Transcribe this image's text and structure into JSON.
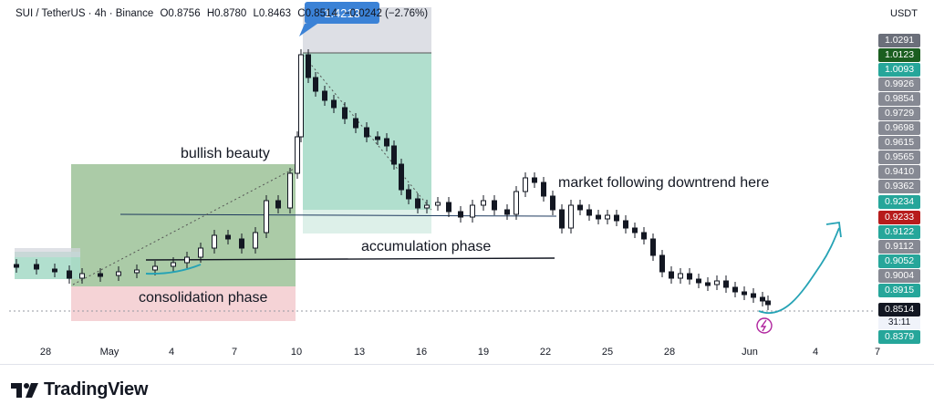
{
  "header": {
    "symbol": "SUI / TetherUS · 4h · Binance",
    "open": "O0.8756",
    "high": "H0.8780",
    "low": "L0.8463",
    "close": "C0.8514",
    "change": "−0.0242 (−2.76%)"
  },
  "currency": "USDT",
  "price_scale": {
    "labels": [
      {
        "text": "1.0291",
        "color": "#6b6f7a"
      },
      {
        "text": "1.0123",
        "color": "#1b5e20"
      },
      {
        "text": "1.0093",
        "color": "#26a69a"
      },
      {
        "text": "0.9926",
        "color": "#868993"
      },
      {
        "text": "0.9854",
        "color": "#868993"
      },
      {
        "text": "0.9729",
        "color": "#868993"
      },
      {
        "text": "0.9698",
        "color": "#868993"
      },
      {
        "text": "0.9615",
        "color": "#868993"
      },
      {
        "text": "0.9565",
        "color": "#868993"
      },
      {
        "text": "0.9410",
        "color": "#868993"
      },
      {
        "text": "0.9362",
        "color": "#868993"
      },
      {
        "text": "0.9234",
        "color": "#26a69a"
      },
      {
        "text": "0.9233",
        "color": "#b71c1c"
      },
      {
        "text": "0.9122",
        "color": "#26a69a"
      },
      {
        "text": "0.9112",
        "color": "#868993"
      },
      {
        "text": "0.9052",
        "color": "#26a69a"
      },
      {
        "text": "0.9004",
        "color": "#868993"
      },
      {
        "text": "0.8915",
        "color": "#26a69a"
      },
      {
        "text": "0.8514",
        "color": "#131722"
      },
      {
        "text": "0.8379",
        "color": "#26a69a"
      }
    ],
    "countdown": "31:11"
  },
  "x_axis": [
    "28",
    "May",
    "4",
    "7",
    "10",
    "13",
    "16",
    "19",
    "22",
    "25",
    "28",
    "Jun",
    "4",
    "7"
  ],
  "annotations": {
    "bullish": "bullish beauty",
    "consolidation": "consolidation phase",
    "accumulation": "accumulation phase",
    "downtrend": "market following downtrend here"
  },
  "measure_badge": "1.4213",
  "footer": {
    "brand": "TradingView"
  },
  "colors": {
    "up": "#131722",
    "down": "#131722",
    "long_zone": "#a8dcc9",
    "green_zone": "#8fb98a",
    "red_zone": "#f3c8cc",
    "arrow": "#26a3b5"
  }
}
